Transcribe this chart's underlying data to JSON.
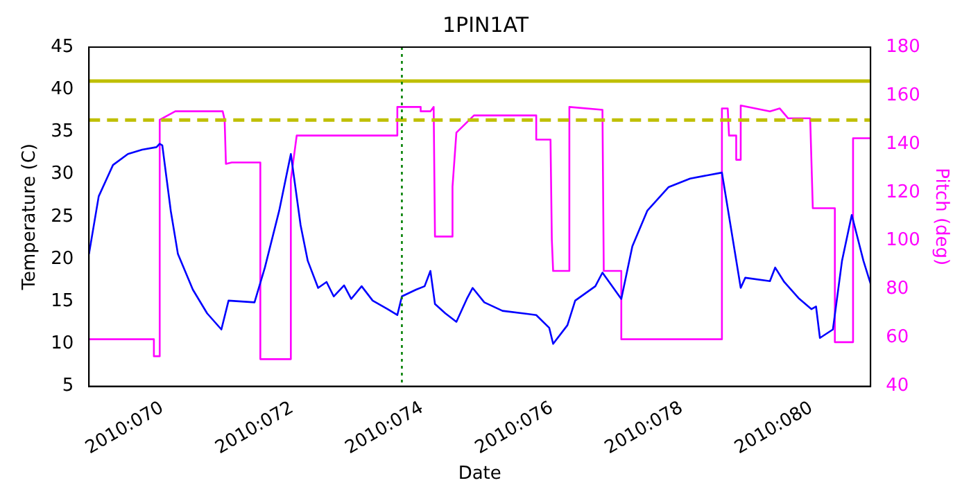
{
  "chart_data": {
    "type": "line",
    "title": "1PIN1AT",
    "xlabel": "Date",
    "ylabel": "Temperature (C)",
    "y2label": "Pitch (deg)",
    "xlim": [
      "2010-03-09T20:53",
      "2010-03-21T21:50"
    ],
    "xticks": [
      {
        "value": "2010-03-11",
        "label": "2010:070"
      },
      {
        "value": "2010-03-13",
        "label": "2010:072"
      },
      {
        "value": "2010-03-15",
        "label": "2010:074"
      },
      {
        "value": "2010-03-17",
        "label": "2010:076"
      },
      {
        "value": "2010-03-19",
        "label": "2010:078"
      },
      {
        "value": "2010-03-21",
        "label": "2010:080"
      }
    ],
    "ylim": [
      5,
      45
    ],
    "yticks": [
      5,
      10,
      15,
      20,
      25,
      30,
      35,
      40,
      45
    ],
    "y2lim": [
      40,
      180
    ],
    "y2ticks": [
      40,
      60,
      80,
      100,
      120,
      140,
      160,
      180
    ],
    "grid": false,
    "legend": false,
    "marker": "none",
    "series": [
      {
        "color": "#0000ff",
        "x": [
          "2010-03-09T20:53",
          "2010-03-10T00:29",
          "2010-03-10T05:46",
          "2010-03-10T11:17",
          "2010-03-10T16:34",
          "2010-03-10T21:50",
          "2010-03-10T23:02",
          "2010-03-11T00:00",
          "2010-03-11T03:07",
          "2010-03-11T05:46",
          "2010-03-11T11:17",
          "2010-03-11T16:34",
          "2010-03-11T21:50",
          "2010-03-12T00:29",
          "2010-03-12T10:05",
          "2010-03-12T13:55",
          "2010-03-12T19:12",
          "2010-03-12T23:31",
          "2010-03-13T03:07",
          "2010-03-13T05:46",
          "2010-03-13T09:36",
          "2010-03-13T12:43",
          "2010-03-13T15:22",
          "2010-03-13T19:12",
          "2010-03-13T21:50",
          "2010-03-14T01:41",
          "2010-03-14T05:46",
          "2010-03-14T11:17",
          "2010-03-14T14:53",
          "2010-03-14T16:34",
          "2010-03-14T21:50",
          "2010-03-15T00:58",
          "2010-03-15T03:07",
          "2010-03-15T04:48",
          "2010-03-15T08:38",
          "2010-03-15T12:43",
          "2010-03-15T16:34",
          "2010-03-15T18:43",
          "2010-03-15T23:02",
          "2010-03-16T05:46",
          "2010-03-16T18:14",
          "2010-03-16T23:02",
          "2010-03-17T00:29",
          "2010-03-17T05:46",
          "2010-03-17T08:38",
          "2010-03-17T16:05",
          "2010-03-17T18:43",
          "2010-03-18T01:41",
          "2010-03-18T05:46",
          "2010-03-18T11:17",
          "2010-03-18T19:12",
          "2010-03-19T03:07",
          "2010-03-19T14:53",
          "2010-03-19T21:50",
          "2010-03-19T23:31",
          "2010-03-20T08:38",
          "2010-03-20T10:34",
          "2010-03-20T13:55",
          "2010-03-20T19:12",
          "2010-03-21T00:00",
          "2010-03-21T01:41",
          "2010-03-21T03:07",
          "2010-03-21T07:55",
          "2010-03-21T11:17",
          "2010-03-21T14:53",
          "2010-03-21T19:12",
          "2010-03-21T21:50"
        ],
        "values": [
          20.6,
          27.4,
          31.1,
          32.4,
          32.9,
          33.2,
          33.6,
          33.4,
          25.7,
          20.6,
          16.4,
          13.6,
          11.7,
          15.1,
          14.9,
          19.0,
          25.7,
          32.4,
          24.0,
          19.8,
          16.6,
          17.3,
          15.6,
          16.9,
          15.3,
          16.8,
          15.1,
          14.1,
          13.4,
          15.6,
          16.4,
          16.8,
          18.6,
          14.7,
          13.6,
          12.6,
          15.3,
          16.6,
          14.9,
          13.9,
          13.4,
          11.9,
          10.0,
          12.2,
          15.1,
          16.8,
          18.4,
          15.3,
          21.5,
          25.7,
          28.5,
          29.5,
          30.2,
          16.6,
          17.8,
          17.4,
          19.0,
          17.3,
          15.4,
          14.1,
          14.4,
          10.7,
          11.7,
          19.8,
          25.2,
          19.8,
          17.1
        ]
      },
      {
        "color": "#ff00ff",
        "axis": "y2",
        "x": [
          "2010-03-09T20:53",
          "2010-03-10T20:53",
          "2010-03-10T20:53",
          "2010-03-10T23:02",
          "2010-03-10T23:02",
          "2010-03-11T04:48",
          "2010-03-11T22:19",
          "2010-03-11T23:02",
          "2010-03-11T23:31",
          "2010-03-12T01:41",
          "2010-03-12T12:14",
          "2010-03-12T12:14",
          "2010-03-12T23:31",
          "2010-03-12T23:31",
          "2010-03-13T01:41",
          "2010-03-14T14:53",
          "2010-03-14T14:53",
          "2010-03-14T23:31",
          "2010-03-14T23:31",
          "2010-03-15T03:07",
          "2010-03-15T04:19",
          "2010-03-15T04:48",
          "2010-03-15T11:17",
          "2010-03-15T11:17",
          "2010-03-15T12:43",
          "2010-03-15T19:12",
          "2010-03-16T18:14",
          "2010-03-16T18:14",
          "2010-03-16T23:31",
          "2010-03-17T00:00",
          "2010-03-17T00:29",
          "2010-03-17T06:29",
          "2010-03-17T06:29",
          "2010-03-17T18:43",
          "2010-03-17T19:12",
          "2010-03-18T01:41",
          "2010-03-18T01:41",
          "2010-03-19T14:53",
          "2010-03-19T14:53",
          "2010-03-19T17:02",
          "2010-03-19T17:31",
          "2010-03-19T20:10",
          "2010-03-19T20:10",
          "2010-03-19T21:50",
          "2010-03-19T21:50",
          "2010-03-20T08:38",
          "2010-03-20T12:14",
          "2010-03-20T15:22",
          "2010-03-20T23:31",
          "2010-03-21T00:29",
          "2010-03-21T08:38",
          "2010-03-21T08:38",
          "2010-03-21T15:22",
          "2010-03-21T15:22",
          "2010-03-21T21:50"
        ],
        "values": [
          59.4,
          59.4,
          52.4,
          52.4,
          150,
          153.5,
          153.5,
          150,
          131.8,
          132.4,
          132.4,
          51.2,
          51.2,
          125.3,
          143.5,
          143.5,
          155.3,
          155.3,
          153.5,
          153.5,
          155.3,
          101.8,
          101.8,
          122.4,
          144.7,
          151.8,
          151.8,
          141.8,
          141.8,
          100.6,
          87.6,
          87.6,
          155.3,
          154.1,
          87.6,
          87.6,
          59.4,
          59.4,
          154.7,
          154.7,
          143.5,
          143.5,
          133.5,
          133.5,
          155.9,
          153.5,
          154.7,
          150.6,
          150.6,
          113.5,
          113.5,
          58.2,
          58.2,
          142.4,
          142.4
        ]
      }
    ],
    "ref_lines": [
      {
        "axis": "y",
        "value": 41,
        "color": "#bfbf00",
        "line_style": "solid"
      },
      {
        "axis": "y",
        "value": 36.4,
        "color": "#bfbf00",
        "line_style": "dashed"
      },
      {
        "axis": "x",
        "value": "2010-03-14T16:34",
        "color": "#008000",
        "line_style": "dotted"
      }
    ]
  }
}
